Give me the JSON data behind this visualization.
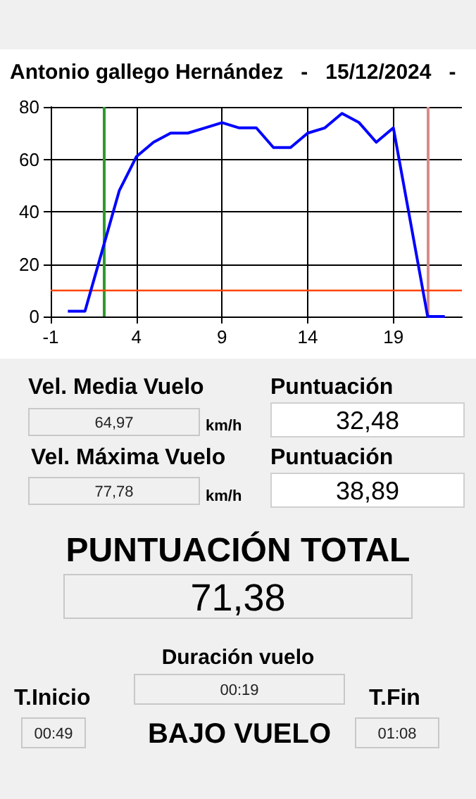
{
  "chart_data": [
    {
      "type": "line",
      "title": "Antonio gallego Hernández   -   15/12/2024   -",
      "x": [
        0,
        1,
        2,
        3,
        4,
        5,
        6,
        7,
        8,
        9,
        10,
        11,
        12,
        13,
        14,
        15,
        16,
        17,
        18,
        19,
        20,
        21,
        22
      ],
      "series": [
        {
          "color": "#0000ff",
          "values": [
            2,
            2,
            25,
            48,
            61,
            66.5,
            70,
            70,
            72,
            74,
            72,
            72,
            64.5,
            64.5,
            70,
            72,
            77.5,
            74,
            66.5,
            72,
            36,
            0,
            0
          ]
        }
      ],
      "xlim": [
        -1,
        23
      ],
      "xticks": [
        -1,
        4,
        9,
        14,
        19
      ],
      "ylim": [
        0,
        80
      ],
      "yticks": [
        0,
        20,
        40,
        60,
        80
      ],
      "ref_lines": [
        {
          "axis": "x",
          "value": 2.1,
          "label": null,
          "color": "#2e9a2e"
        },
        {
          "axis": "x",
          "value": 21,
          "label": null,
          "color": "#d98a8a"
        },
        {
          "axis": "y",
          "value": 10,
          "label": null,
          "color": "#ff4500"
        }
      ],
      "grid": true,
      "marker": "none",
      "line_style": "solid"
    },
    {
      "type": "other",
      "annotations": [
        "Vel. Media Vuelo",
        "64,97",
        "km/h",
        "Puntuación",
        "32,48",
        "Vel. Máxima Vuelo",
        "77,78",
        "km/h",
        "Puntuación",
        "38,89",
        "PUNTUACIÓN TOTAL",
        "71,38",
        "Duración vuelo",
        "00:19",
        "T.Inicio",
        "00:49",
        "BAJO VUELO",
        "T.Fin",
        "01:08"
      ]
    }
  ]
}
